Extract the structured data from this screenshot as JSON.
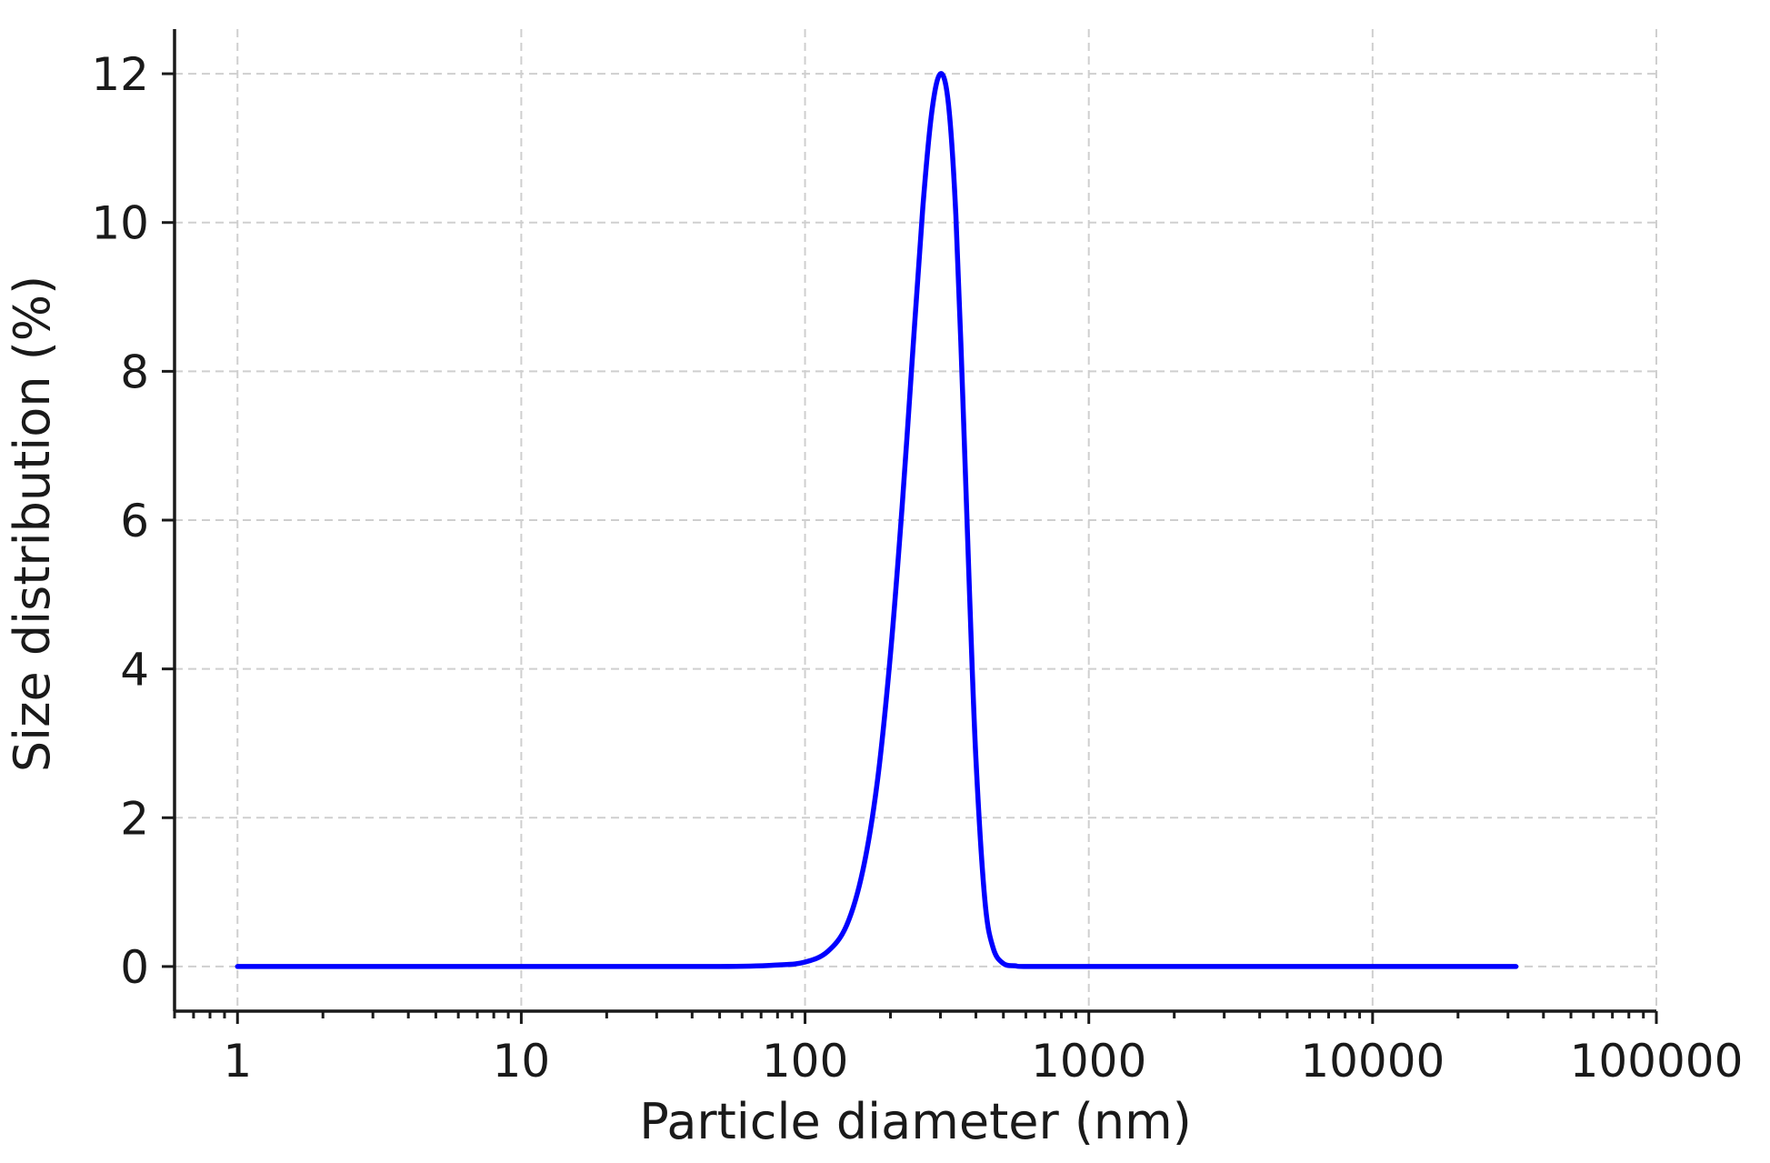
{
  "chart_data": {
    "type": "line",
    "title": "",
    "xlabel": "Particle diameter (nm)",
    "ylabel": "Size distribution (%)",
    "x_scale": "log",
    "xlim": [
      0.6,
      100000
    ],
    "ylim": [
      -0.6,
      12.6
    ],
    "grid": true,
    "x_ticks": [
      1,
      10,
      100,
      1000,
      10000,
      100000
    ],
    "x_tick_labels": [
      "1",
      "10",
      "100",
      "1000",
      "10000",
      "100000"
    ],
    "y_ticks": [
      0,
      2,
      4,
      6,
      8,
      10,
      12
    ],
    "y_tick_labels": [
      "0",
      "2",
      "4",
      "6",
      "8",
      "10",
      "12"
    ],
    "series": [
      {
        "color": "#0000ff",
        "x": [
          1,
          10,
          50,
          80,
          100,
          120,
          140,
          160,
          180,
          200,
          220,
          240,
          260,
          280,
          300,
          320,
          340,
          360,
          380,
          400,
          430,
          460,
          500,
          550,
          600,
          1000,
          10000,
          32000
        ],
        "y": [
          0,
          0,
          0,
          0.02,
          0.06,
          0.2,
          0.55,
          1.3,
          2.5,
          4.2,
          6.2,
          8.3,
          10.2,
          11.5,
          12.0,
          11.6,
          10.1,
          7.6,
          5.0,
          2.8,
          0.9,
          0.25,
          0.04,
          0.01,
          0,
          0,
          0,
          0
        ]
      }
    ]
  }
}
